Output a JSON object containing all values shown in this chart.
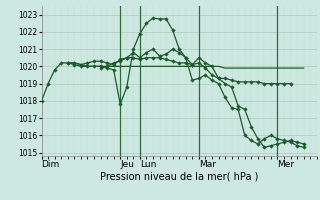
{
  "title": "",
  "xlabel": "Pression niveau de la mer( hPa )",
  "bg_color": "#cce8e0",
  "grid_major_color": "#aaccbb",
  "grid_minor_color": "#c4ddd6",
  "line_color": "#1a5c2a",
  "vline_color": "#2d6b3a",
  "ylim": [
    1014.8,
    1023.5
  ],
  "yticks": [
    1015,
    1016,
    1017,
    1018,
    1019,
    1020,
    1021,
    1022,
    1023
  ],
  "day_labels": [
    "Dim",
    "Jeu",
    "Lun",
    "Mar",
    "Mer"
  ],
  "day_positions": [
    0,
    96,
    120,
    192,
    288
  ],
  "vline_positions": [
    96,
    120,
    192,
    288
  ],
  "xlim_max": 336,
  "line1_x": [
    0,
    8,
    16,
    24,
    32,
    40,
    48,
    56,
    64,
    72,
    80,
    88,
    96,
    104,
    112,
    120,
    128,
    136,
    144,
    152,
    160,
    168,
    176,
    184,
    192,
    200,
    208,
    216,
    224,
    232,
    240,
    248,
    256,
    264,
    272,
    280,
    288,
    296,
    304,
    312,
    320
  ],
  "line1_y": [
    1018.0,
    1019.0,
    1019.8,
    1020.2,
    1020.2,
    1020.1,
    1020.0,
    1020.0,
    1020.0,
    1020.0,
    1019.9,
    1019.8,
    1017.8,
    1018.8,
    1021.0,
    1021.9,
    1022.5,
    1022.8,
    1022.75,
    1022.75,
    1022.1,
    1021.0,
    1020.5,
    1019.2,
    1019.3,
    1019.5,
    1019.2,
    1019.0,
    1018.2,
    1017.6,
    1017.5,
    1016.0,
    1015.7,
    1015.5,
    1015.8,
    1016.0,
    1015.8,
    1015.7,
    1015.6,
    1015.4,
    1015.3
  ],
  "line2_x": [
    32,
    40,
    48,
    56,
    64,
    72,
    80,
    88,
    96,
    104,
    112,
    120,
    128,
    136,
    144,
    152,
    160,
    168,
    176,
    184,
    192,
    200,
    208,
    216,
    224,
    232,
    240,
    248,
    256,
    264,
    272,
    280,
    288,
    296,
    304,
    312,
    320
  ],
  "line2_y": [
    1020.2,
    1020.2,
    1020.1,
    1020.0,
    1020.0,
    1020.0,
    1020.0,
    1020.0,
    1020.0,
    1020.0,
    1020.0,
    1020.0,
    1020.0,
    1020.0,
    1020.0,
    1020.0,
    1020.0,
    1020.0,
    1020.0,
    1020.0,
    1020.0,
    1020.0,
    1020.0,
    1020.0,
    1019.9,
    1019.9,
    1019.9,
    1019.9,
    1019.9,
    1019.9,
    1019.9,
    1019.9,
    1019.9,
    1019.9,
    1019.9,
    1019.9,
    1019.9
  ],
  "line3_x": [
    32,
    40,
    48,
    56,
    64,
    72,
    80,
    88,
    96,
    104,
    112,
    120,
    128,
    136,
    144,
    152,
    160,
    168,
    176,
    184,
    192,
    200,
    208,
    216,
    224,
    232,
    240,
    248,
    256,
    264,
    272,
    280,
    288,
    296,
    304
  ],
  "line3_y": [
    1020.2,
    1020.2,
    1020.1,
    1020.2,
    1020.3,
    1020.3,
    1020.2,
    1020.1,
    1020.4,
    1020.5,
    1020.5,
    1020.4,
    1020.5,
    1020.5,
    1020.5,
    1020.4,
    1020.3,
    1020.2,
    1020.2,
    1020.1,
    1020.2,
    1019.9,
    1019.5,
    1019.3,
    1019.3,
    1019.2,
    1019.1,
    1019.1,
    1019.1,
    1019.1,
    1019.0,
    1019.0,
    1019.0,
    1019.0,
    1019.0
  ],
  "line4_x": [
    72,
    80,
    88,
    96,
    104,
    112,
    120,
    128,
    136,
    144,
    152,
    160,
    168,
    176,
    184,
    192,
    200,
    208,
    216,
    224,
    232,
    240,
    248,
    256,
    264,
    272,
    280,
    288,
    296,
    304,
    312,
    320
  ],
  "line4_y": [
    1019.9,
    1020.0,
    1020.2,
    1020.3,
    1020.5,
    1020.8,
    1020.5,
    1020.8,
    1021.0,
    1020.6,
    1020.7,
    1021.0,
    1020.8,
    1020.5,
    1020.1,
    1020.5,
    1020.2,
    1020.0,
    1019.3,
    1019.0,
    1018.8,
    1017.7,
    1017.5,
    1016.5,
    1015.8,
    1015.3,
    1015.4,
    1015.5,
    1015.6,
    1015.7,
    1015.6,
    1015.5
  ]
}
